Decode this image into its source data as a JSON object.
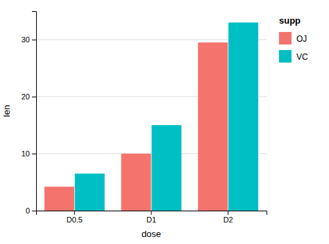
{
  "chart_data": {
    "type": "bar",
    "categories": [
      "D0.5",
      "D1",
      "D2"
    ],
    "series": [
      {
        "name": "OJ",
        "color": "#F4736C",
        "values": [
          4.2,
          10.0,
          29.5
        ]
      },
      {
        "name": "VC",
        "color": "#00BFC4",
        "values": [
          6.5,
          15.0,
          33.0
        ]
      }
    ],
    "xlabel": "dose",
    "ylabel": "len",
    "ylim": [
      0,
      35
    ],
    "yticks": [
      0,
      10,
      20,
      30
    ],
    "grid": true,
    "legend": "right",
    "legend_title": "supp"
  }
}
